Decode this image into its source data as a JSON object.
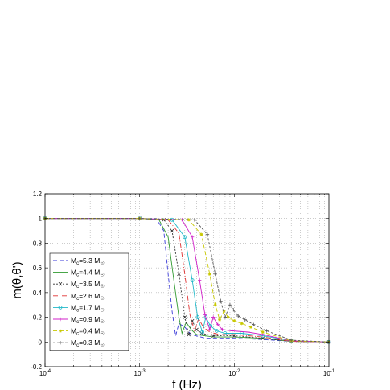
{
  "chart_data": {
    "type": "line",
    "title": "",
    "xlabel": "f (Hz)",
    "ylabel": "m(θ,θ')",
    "x_scale": "log",
    "xlim": [
      0.0001,
      0.1
    ],
    "ylim": [
      -0.2,
      1.2
    ],
    "x_tick_labels": [
      {
        "base": "10",
        "exp": "-4",
        "value": 0.0001
      },
      {
        "base": "10",
        "exp": "-3",
        "value": 0.001
      },
      {
        "base": "10",
        "exp": "-2",
        "value": 0.01
      },
      {
        "base": "10",
        "exp": "-1",
        "value": 0.1
      }
    ],
    "y_ticks": [
      "-0.2",
      "0",
      "0.2",
      "0.4",
      "0.6",
      "0.8",
      "1",
      "1.2"
    ],
    "grid": "dotted",
    "legend_position": "bottom-left",
    "series": [
      {
        "name_parts": [
          "M",
          "c",
          "=5.3 M",
          "☉"
        ],
        "color": "#3a3ad8",
        "dash": "5,3",
        "marker": "none",
        "points": [
          [
            0.0001,
            1
          ],
          [
            0.001,
            1
          ],
          [
            0.0015,
            1
          ],
          [
            0.0018,
            0.9
          ],
          [
            0.002,
            0.55
          ],
          [
            0.0022,
            0.25
          ],
          [
            0.0024,
            0.05
          ],
          [
            0.0026,
            0.15
          ],
          [
            0.003,
            0.12
          ],
          [
            0.0035,
            0.06
          ],
          [
            0.005,
            0.03
          ],
          [
            0.01,
            0.03
          ],
          [
            0.02,
            0.02
          ],
          [
            0.04,
            0.005
          ],
          [
            0.1,
            0
          ]
        ]
      },
      {
        "name_parts": [
          "M",
          "c",
          "=4.4 M",
          "☉"
        ],
        "color": "#2f9a2f",
        "dash": "",
        "marker": "none",
        "points": [
          [
            0.0001,
            1
          ],
          [
            0.001,
            1
          ],
          [
            0.0016,
            0.99
          ],
          [
            0.002,
            0.85
          ],
          [
            0.0023,
            0.5
          ],
          [
            0.0026,
            0.2
          ],
          [
            0.0028,
            0.07
          ],
          [
            0.0031,
            0.16
          ],
          [
            0.0035,
            0.1
          ],
          [
            0.004,
            0.06
          ],
          [
            0.006,
            0.04
          ],
          [
            0.01,
            0.04
          ],
          [
            0.02,
            0.03
          ],
          [
            0.04,
            0.005
          ],
          [
            0.1,
            0
          ]
        ]
      },
      {
        "name_parts": [
          "M",
          "c",
          "=3.5 M",
          "☉"
        ],
        "color": "#333333",
        "dash": "2,2",
        "marker": "x",
        "points": [
          [
            0.0001,
            1
          ],
          [
            0.001,
            1
          ],
          [
            0.0018,
            0.99
          ],
          [
            0.0022,
            0.9
          ],
          [
            0.0026,
            0.55
          ],
          [
            0.003,
            0.2
          ],
          [
            0.0033,
            0.06
          ],
          [
            0.0036,
            0.17
          ],
          [
            0.004,
            0.1
          ],
          [
            0.0045,
            0.07
          ],
          [
            0.006,
            0.05
          ],
          [
            0.01,
            0.05
          ],
          [
            0.02,
            0.03
          ],
          [
            0.04,
            0.005
          ],
          [
            0.1,
            0
          ]
        ]
      },
      {
        "name_parts": [
          "M",
          "c",
          "=2.6 M",
          "☉"
        ],
        "color": "#e03030",
        "dash": "6,2,1,2",
        "marker": "none",
        "points": [
          [
            0.0001,
            1
          ],
          [
            0.001,
            1
          ],
          [
            0.002,
            0.99
          ],
          [
            0.0026,
            0.88
          ],
          [
            0.003,
            0.55
          ],
          [
            0.0034,
            0.22
          ],
          [
            0.0038,
            0.09
          ],
          [
            0.0042,
            0.19
          ],
          [
            0.0047,
            0.12
          ],
          [
            0.0055,
            0.08
          ],
          [
            0.007,
            0.06
          ],
          [
            0.01,
            0.06
          ],
          [
            0.02,
            0.04
          ],
          [
            0.04,
            0.005
          ],
          [
            0.1,
            0
          ]
        ]
      },
      {
        "name_parts": [
          "M",
          "c",
          "=1.7 M",
          "☉"
        ],
        "color": "#20b8c8",
        "dash": "",
        "marker": "circle",
        "points": [
          [
            0.0001,
            1
          ],
          [
            0.001,
            1
          ],
          [
            0.0022,
            0.99
          ],
          [
            0.003,
            0.85
          ],
          [
            0.0036,
            0.5
          ],
          [
            0.0041,
            0.2
          ],
          [
            0.0046,
            0.08
          ],
          [
            0.005,
            0.2
          ],
          [
            0.0056,
            0.13
          ],
          [
            0.0065,
            0.09
          ],
          [
            0.008,
            0.07
          ],
          [
            0.012,
            0.07
          ],
          [
            0.02,
            0.05
          ],
          [
            0.04,
            0.01
          ],
          [
            0.1,
            0
          ]
        ]
      },
      {
        "name_parts": [
          "M",
          "c",
          "=0.9 M",
          "☉"
        ],
        "color": "#d020c8",
        "dash": "",
        "marker": "plus",
        "points": [
          [
            0.0001,
            1
          ],
          [
            0.001,
            1
          ],
          [
            0.0028,
            0.99
          ],
          [
            0.0036,
            0.85
          ],
          [
            0.0043,
            0.5
          ],
          [
            0.0049,
            0.22
          ],
          [
            0.0055,
            0.1
          ],
          [
            0.006,
            0.2
          ],
          [
            0.0067,
            0.14
          ],
          [
            0.0075,
            0.1
          ],
          [
            0.0095,
            0.09
          ],
          [
            0.014,
            0.08
          ],
          [
            0.02,
            0.06
          ],
          [
            0.04,
            0.01
          ],
          [
            0.1,
            0
          ]
        ]
      },
      {
        "name_parts": [
          "M",
          "c",
          "=0.4 M",
          "☉"
        ],
        "color": "#c8c800",
        "dash": "5,3",
        "marker": "star",
        "points": [
          [
            0.0001,
            1
          ],
          [
            0.001,
            1
          ],
          [
            0.0033,
            0.99
          ],
          [
            0.0045,
            0.87
          ],
          [
            0.0055,
            0.55
          ],
          [
            0.0063,
            0.3
          ],
          [
            0.007,
            0.18
          ],
          [
            0.0078,
            0.25
          ],
          [
            0.0086,
            0.2
          ],
          [
            0.01,
            0.17
          ],
          [
            0.012,
            0.15
          ],
          [
            0.015,
            0.12
          ],
          [
            0.02,
            0.08
          ],
          [
            0.04,
            0.01
          ],
          [
            0.1,
            0
          ]
        ]
      },
      {
        "name_parts": [
          "M",
          "c",
          "=0.3 M",
          "☉"
        ],
        "color": "#555555",
        "dash": "3,2",
        "marker": "plus",
        "points": [
          [
            0.0001,
            1
          ],
          [
            0.001,
            1
          ],
          [
            0.0038,
            0.99
          ],
          [
            0.0052,
            0.87
          ],
          [
            0.0063,
            0.55
          ],
          [
            0.0072,
            0.33
          ],
          [
            0.008,
            0.2
          ],
          [
            0.009,
            0.3
          ],
          [
            0.0098,
            0.26
          ],
          [
            0.011,
            0.21
          ],
          [
            0.013,
            0.18
          ],
          [
            0.016,
            0.14
          ],
          [
            0.022,
            0.09
          ],
          [
            0.04,
            0.015
          ],
          [
            0.1,
            0
          ]
        ]
      }
    ]
  }
}
